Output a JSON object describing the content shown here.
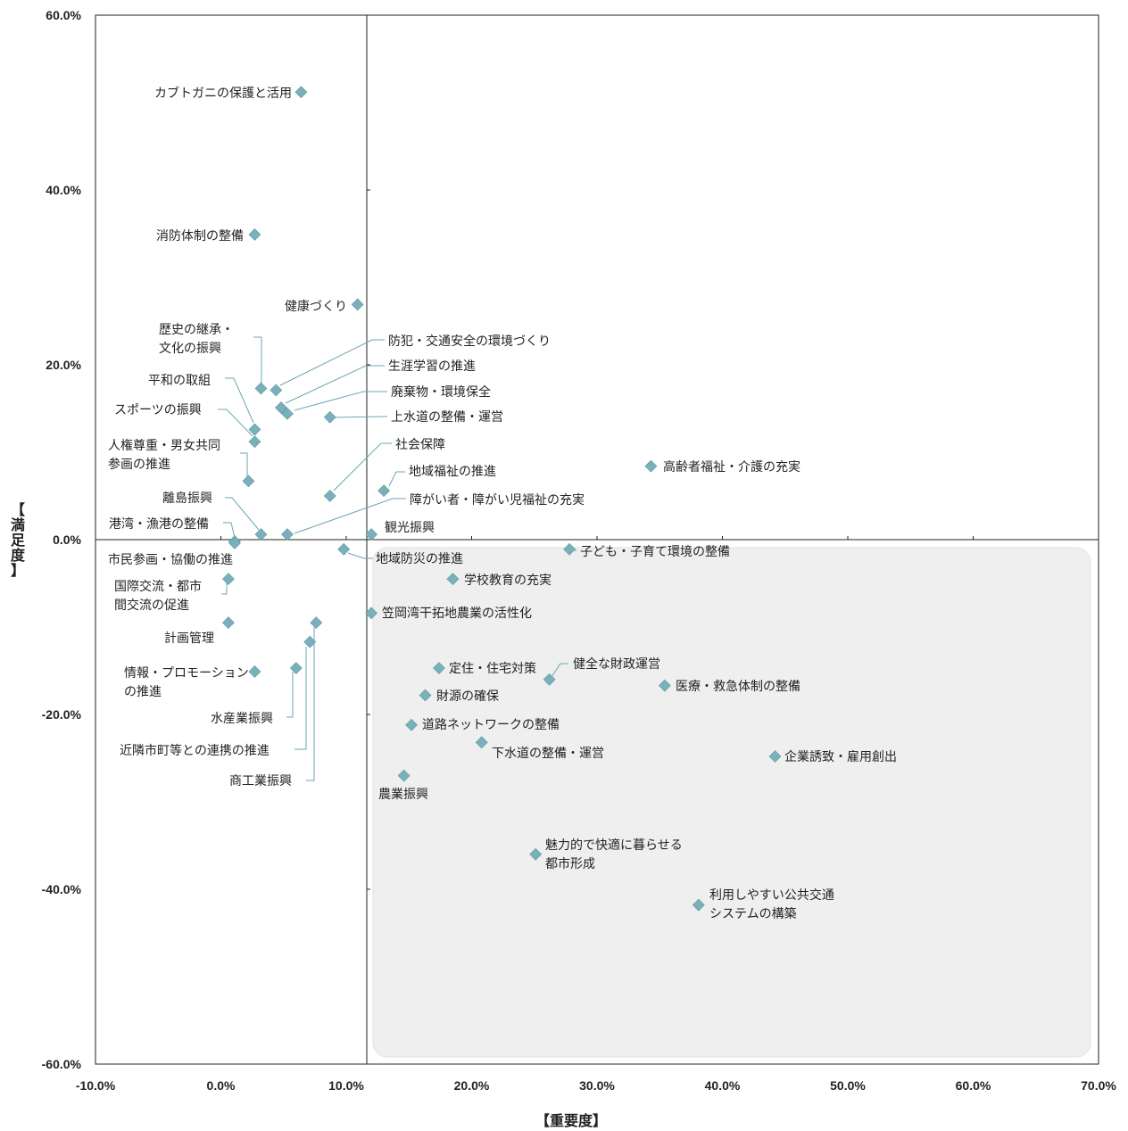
{
  "chart_data": {
    "type": "scatter",
    "xlabel": "【重要度】",
    "ylabel": "【満足度】",
    "xlim": [
      -10,
      70
    ],
    "ylim": [
      -60,
      60
    ],
    "x_ticks": [
      "-10.0%",
      "0.0%",
      "10.0%",
      "20.0%",
      "30.0%",
      "40.0%",
      "50.0%",
      "60.0%",
      "70.0%"
    ],
    "y_ticks": [
      "60.0%",
      "40.0%",
      "20.0%",
      "0.0%",
      "-20.0%",
      "-40.0%",
      "-60.0%"
    ],
    "colors": {
      "marker": "#7ab0ba",
      "highlight_region": "#efefef",
      "leader": "#6aa7b3"
    },
    "points": [
      {
        "label": "カブトガニの保護と活用",
        "x": 6.4,
        "y": 51.2
      },
      {
        "label": "消防体制の整備",
        "x": 2.7,
        "y": 34.9
      },
      {
        "label": "健康づくり",
        "x": 10.9,
        "y": 26.9
      },
      {
        "label": "歴史の継承・\n文化の振興",
        "x": 3.2,
        "y": 17.3
      },
      {
        "label": "防犯・交通安全の環境づくり",
        "x": 4.4,
        "y": 17.1
      },
      {
        "label": "生涯学習の推進",
        "x": 4.8,
        "y": 15.1
      },
      {
        "label": "廃棄物・環境保全",
        "x": 5.3,
        "y": 14.4
      },
      {
        "label": "上水道の整備・運営",
        "x": 8.7,
        "y": 14.0
      },
      {
        "label": "平和の取組",
        "x": 2.7,
        "y": 12.6
      },
      {
        "label": "スポーツの振興",
        "x": 2.7,
        "y": 11.2
      },
      {
        "label": "人権尊重・男女共同\n参画の推進",
        "x": 2.2,
        "y": 6.7
      },
      {
        "label": "社会保障",
        "x": 8.7,
        "y": 5.0
      },
      {
        "label": "地域福祉の推進",
        "x": 13.0,
        "y": 5.6
      },
      {
        "label": "高齢者福祉・介護の充実",
        "x": 34.3,
        "y": 8.4
      },
      {
        "label": "障がい者・障がい児福祉の充実",
        "x": 5.3,
        "y": 0.6
      },
      {
        "label": "離島振興",
        "x": 3.2,
        "y": 0.6
      },
      {
        "label": "観光振興",
        "x": 12.0,
        "y": 0.6
      },
      {
        "label": "港湾・漁港の整備",
        "x": 1.1,
        "y": -0.2
      },
      {
        "label": "市民参画・協働の推進",
        "x": 1.1,
        "y": -0.4
      },
      {
        "label": "地域防災の推進",
        "x": 9.8,
        "y": -1.1
      },
      {
        "label": "子ども・子育て環境の整備",
        "x": 27.8,
        "y": -1.1
      },
      {
        "label": "国際交流・都市\n間交流の促進",
        "x": 0.6,
        "y": -4.5
      },
      {
        "label": "学校教育の充実",
        "x": 18.5,
        "y": -4.5
      },
      {
        "label": "笠岡湾干拓地農業の活性化",
        "x": 12.0,
        "y": -8.4
      },
      {
        "label": "計画管理",
        "x": 0.6,
        "y": -9.5
      },
      {
        "label": "商工業振興",
        "x": 7.6,
        "y": -9.5
      },
      {
        "label": "近隣市町等との連携の推進",
        "x": 7.1,
        "y": -11.7
      },
      {
        "label": "情報・プロモーション\nの推進",
        "x": 2.7,
        "y": -15.1
      },
      {
        "label": "水産業振興",
        "x": 6.0,
        "y": -14.7
      },
      {
        "label": "定住・住宅対策",
        "x": 17.4,
        "y": -14.7
      },
      {
        "label": "健全な財政運営",
        "x": 26.2,
        "y": -16.0
      },
      {
        "label": "医療・救急体制の整備",
        "x": 35.4,
        "y": -16.7
      },
      {
        "label": "財源の確保",
        "x": 16.3,
        "y": -17.8
      },
      {
        "label": "道路ネットワークの整備",
        "x": 15.2,
        "y": -21.2
      },
      {
        "label": "下水道の整備・運営",
        "x": 20.8,
        "y": -23.2
      },
      {
        "label": "企業誘致・雇用創出",
        "x": 44.2,
        "y": -24.8
      },
      {
        "label": "農業振興",
        "x": 14.6,
        "y": -27.0
      },
      {
        "label": "魅力的で快適に暮らせる\n都市形成",
        "x": 25.1,
        "y": -36.0
      },
      {
        "label": "利用しやすい公共交通\nシステムの構築",
        "x": 38.1,
        "y": -41.8
      }
    ]
  }
}
